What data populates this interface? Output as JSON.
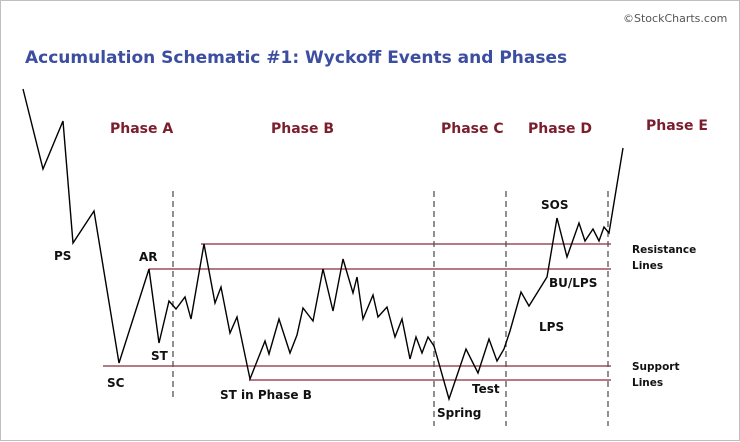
{
  "credit": "©StockCharts.com",
  "title": "Accumulation Schematic #1: Wyckoff Events and Phases",
  "phases": [
    "Phase A",
    "Phase B",
    "Phase C",
    "Phase D",
    "Phase E"
  ],
  "events": {
    "ps": "PS",
    "sc": "SC",
    "ar": "AR",
    "st": "ST",
    "st_phase_b": "ST in Phase B",
    "spring": "Spring",
    "test": "Test",
    "lps": "LPS",
    "bu_lps": "BU/LPS",
    "sos": "SOS"
  },
  "line_labels": {
    "resistance": [
      "Resistance",
      "Lines"
    ],
    "support": [
      "Support",
      "Lines"
    ]
  },
  "colors": {
    "title": "#3b4ea0",
    "phase": "#7a1e2e",
    "level_lines": "#8b2a3c",
    "price": "#000000"
  }
}
